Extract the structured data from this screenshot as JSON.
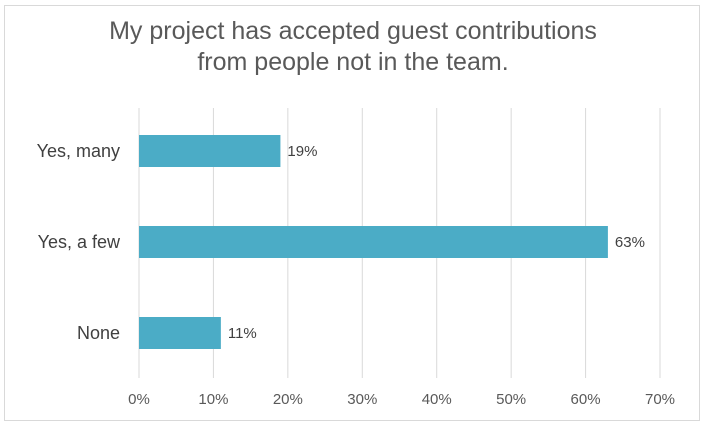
{
  "chart_data": {
    "type": "bar",
    "orientation": "horizontal",
    "title_lines": [
      "My project has accepted guest contributions",
      "from people not in the team."
    ],
    "categories": [
      "Yes, many",
      "Yes, a few",
      "None"
    ],
    "values": [
      19,
      63,
      11
    ],
    "data_labels": [
      "19%",
      "63%",
      "11%"
    ],
    "xlim": [
      0,
      70
    ],
    "xticks": [
      0,
      10,
      20,
      30,
      40,
      50,
      60,
      70
    ],
    "xtick_labels": [
      "0%",
      "10%",
      "20%",
      "30%",
      "40%",
      "50%",
      "60%",
      "70%"
    ],
    "grid": true,
    "bar_color": "#4bacc6",
    "grid_color": "#d9d9d9"
  }
}
